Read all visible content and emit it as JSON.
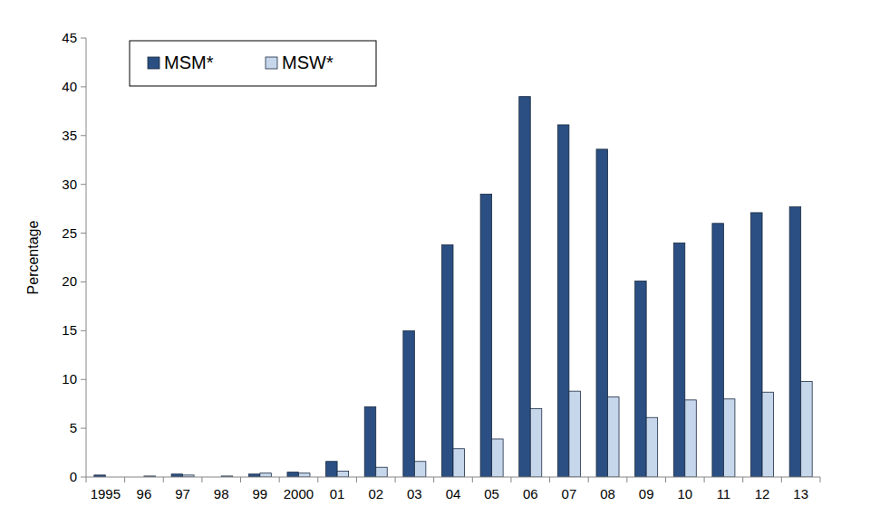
{
  "chart_data": {
    "type": "bar",
    "y_label": "Percentage",
    "categories": [
      "1995",
      "96",
      "97",
      "98",
      "99",
      "2000",
      "01",
      "02",
      "03",
      "04",
      "05",
      "06",
      "07",
      "08",
      "09",
      "10",
      "11",
      "12",
      "13"
    ],
    "series": [
      {
        "name": "MSM*",
        "color": "#2b4f82",
        "values": [
          0.2,
          0,
          0.3,
          0,
          0.3,
          0.5,
          1.6,
          7.2,
          15.0,
          23.8,
          29.0,
          39.0,
          36.1,
          33.6,
          20.1,
          24.0,
          26.0,
          27.1,
          27.7
        ]
      },
      {
        "name": "MSW*",
        "color": "#c6d6eb",
        "values": [
          0,
          0.1,
          0.2,
          0.1,
          0.4,
          0.4,
          0.6,
          1.0,
          1.6,
          2.9,
          3.9,
          7.0,
          8.8,
          8.2,
          6.1,
          7.9,
          8.0,
          8.7,
          9.8
        ]
      }
    ],
    "ylim": [
      0,
      45
    ],
    "yticks": [
      0,
      5,
      10,
      15,
      20,
      25,
      30,
      35,
      40,
      45
    ],
    "grid": false,
    "legend": "upper left"
  }
}
